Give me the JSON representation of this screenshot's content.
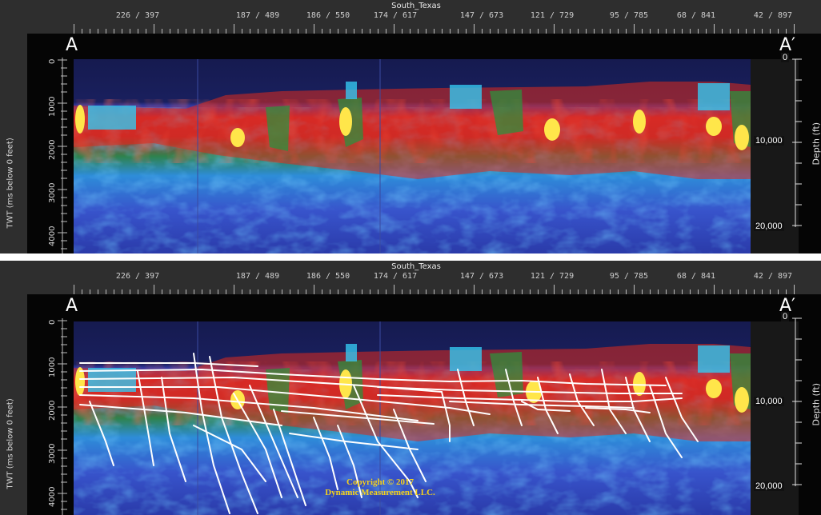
{
  "survey_name": "South_Texas",
  "trace_labels": [
    "226 / 397",
    "187 / 489",
    "186 / 550",
    "174 / 617",
    "147 / 673",
    "121 / 729",
    "95 / 785",
    "68 / 841",
    "42 / 897"
  ],
  "section_start_label": "A",
  "section_end_label": "A′",
  "time_axis": {
    "title": "TWT (ms below 0 feet)",
    "ticks": [
      "0",
      "1000",
      "2000",
      "3000",
      "4000"
    ]
  },
  "depth_axis": {
    "title": "Depth (ft)",
    "ticks": [
      "0",
      "10,000",
      "20,000"
    ]
  },
  "copyright": {
    "line1": "Copyright  © 2017",
    "line2": "Dynamic Measurement LLC."
  },
  "colors": {
    "background": "#050505",
    "header": "#2e2e2e",
    "fault_lines": "#ffffff",
    "copyright_text": "#f5d21c",
    "high_amplitude": "#e8261c",
    "peak_amplitude": "#ffe64a",
    "mid_amplitude": "#2f8f3c",
    "low_amplitude": "#2b5fd9",
    "basement": "#1e2a8a"
  },
  "panels": [
    {
      "name": "uninterpreted",
      "fault_interpretation": false
    },
    {
      "name": "interpreted",
      "fault_interpretation": true
    }
  ]
}
